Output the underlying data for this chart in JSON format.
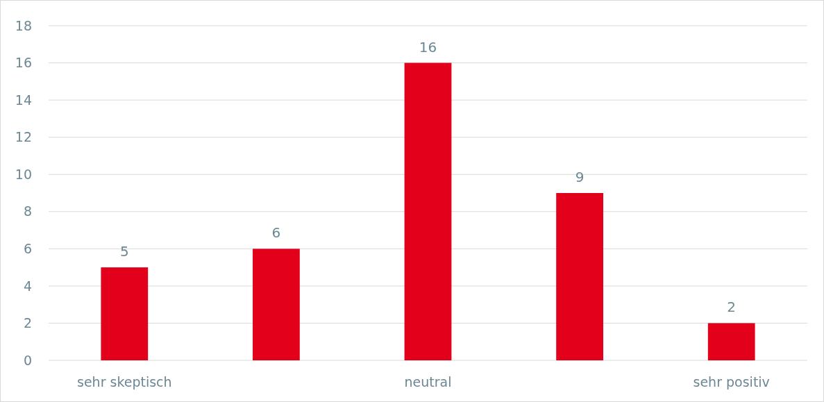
{
  "chart_data": {
    "type": "bar",
    "categories": [
      "sehr skeptisch",
      null,
      "neutral",
      null,
      "sehr positiv"
    ],
    "values": [
      5,
      6,
      16,
      9,
      2
    ],
    "color": "#e2001a",
    "ylim": [
      0,
      18
    ],
    "yticks": [
      0,
      2,
      4,
      6,
      8,
      10,
      12,
      14,
      16,
      18
    ],
    "grid": "y",
    "data_labels": true
  }
}
